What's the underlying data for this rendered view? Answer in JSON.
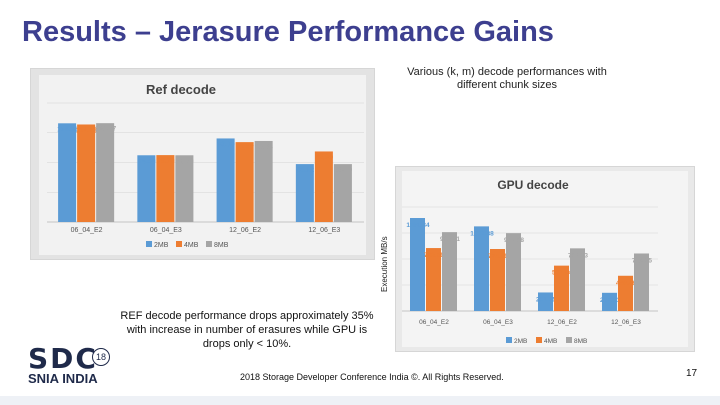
{
  "slide": {
    "title": "Results – Jerasure Performance Gains",
    "caption_right": "Various (k, m) decode performances with different chunk sizes",
    "caption_left": "REF decode performance drops approximately 35% with increase in number of erasures while GPU is drops only < 10%.",
    "footer": "2018 Storage Developer Conference India ©. All Rights Reserved.",
    "page_number": "17",
    "y_axis_label": "Execution MB/s",
    "logo": {
      "sdc": "SDC",
      "year": "18",
      "snia": "SNIA INDIA"
    }
  },
  "colors": {
    "s2mb": "#5b9bd5",
    "s4mb": "#ed7d31",
    "s8mb": "#a5a5a5",
    "title": "#3d3f8f"
  },
  "chart_data": [
    {
      "type": "bar",
      "title": "Ref decode",
      "categories": [
        "06_04_E2",
        "06_04_E3",
        "12_06_E2",
        "12_06_E3"
      ],
      "series": [
        {
          "name": "2MB",
          "values": [
            116.11,
            78.5,
            98.3,
            68.12
          ],
          "labels": [
            "116.11",
            "78.50",
            "98.30",
            "68.12"
          ]
        },
        {
          "name": "4MB",
          "values": [
            114.73,
            78.7,
            93.97,
            82.99
          ],
          "labels": [
            "114.73",
            "78.70",
            "93.97",
            "82.99"
          ]
        },
        {
          "name": "8MB",
          "values": [
            116.27,
            78.5,
            95.33,
            68.1
          ],
          "labels": [
            "116.27",
            "78.50",
            "95.33",
            "68.10"
          ]
        }
      ],
      "ylim": [
        0,
        140
      ],
      "legend": "bottom"
    },
    {
      "type": "bar",
      "title": "GPU decode",
      "categories": [
        "06_04_E2",
        "06_04_E3",
        "12_06_E2",
        "12_06_E3"
      ],
      "series": [
        {
          "name": "2MB",
          "values": [
            1162.34,
            1057.88,
            231.75,
            227.51
          ],
          "labels": [
            "1162.34",
            "1057.88",
            "231.75",
            "227.51"
          ]
        },
        {
          "name": "4MB",
          "values": [
            786.69,
            774.99,
            567.04,
            440.46
          ],
          "labels": [
            "786.69",
            "774.99",
            "567.04",
            "440.46"
          ]
        },
        {
          "name": "8MB",
          "values": [
            985.71,
            973.08,
            783.13,
            718.95
          ],
          "labels": [
            "985.71",
            "973.08",
            "783.13",
            "718.95"
          ]
        }
      ],
      "ylim": [
        0,
        1300
      ],
      "legend": "bottom"
    }
  ]
}
